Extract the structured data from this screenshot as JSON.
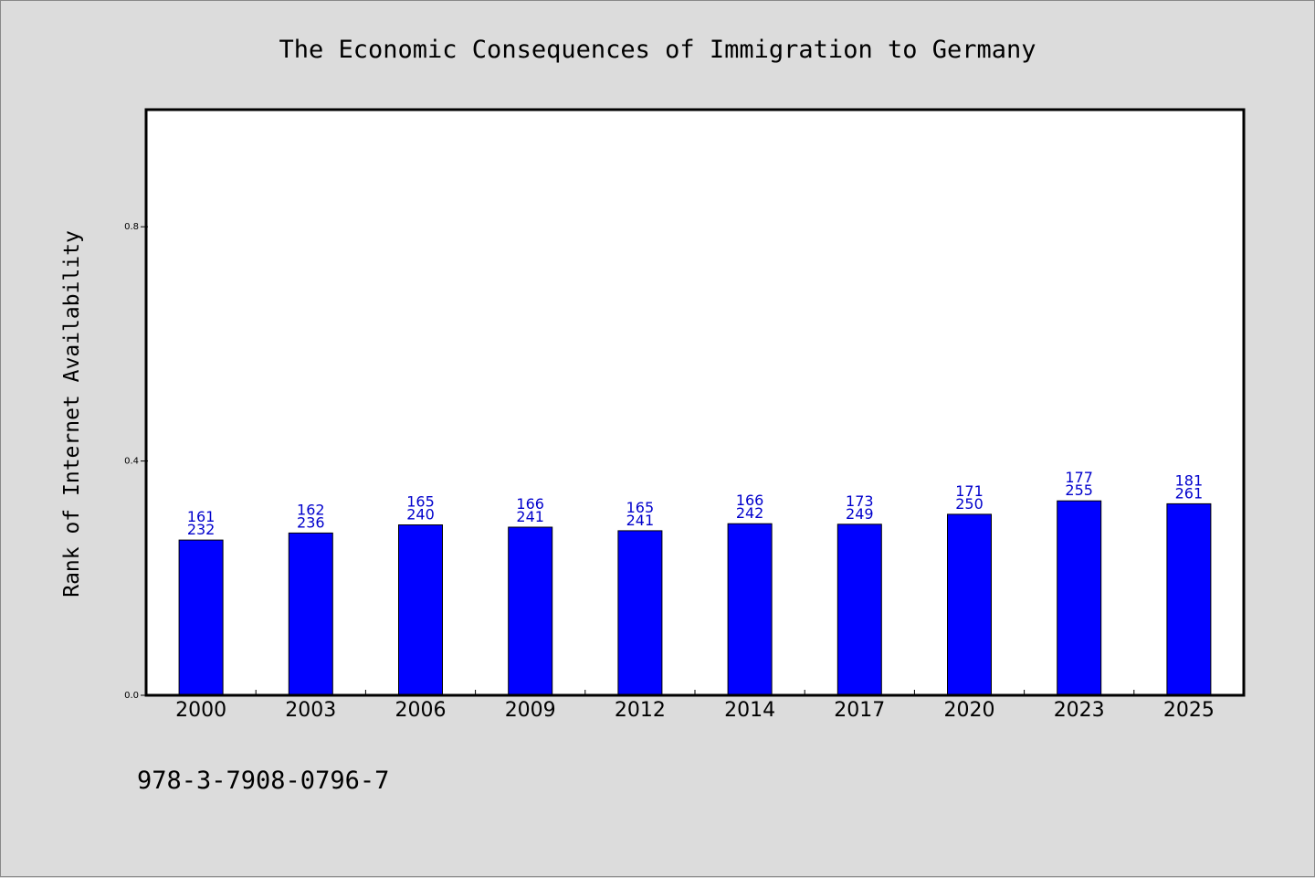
{
  "chart_data": {
    "type": "bar",
    "title": "The Economic Consequences of Immigration to Germany",
    "ylabel": "Rank of Internet Availability",
    "xlabel": "",
    "categories": [
      "2000",
      "2003",
      "2006",
      "2009",
      "2012",
      "2014",
      "2017",
      "2020",
      "2023",
      "2025"
    ],
    "values": [
      0.265,
      0.277,
      0.291,
      0.287,
      0.281,
      0.293,
      0.292,
      0.309,
      0.332,
      0.327
    ],
    "labels_top": [
      "161",
      "162",
      "165",
      "166",
      "165",
      "166",
      "173",
      "171",
      "177",
      "181"
    ],
    "labels_bottom": [
      "232",
      "236",
      "240",
      "241",
      "241",
      "242",
      "249",
      "250",
      "255",
      "261"
    ],
    "ylim": [
      0,
      1.0
    ],
    "yticks": [
      0.0,
      0.4,
      0.8
    ],
    "ytick_labels": [
      "0.0",
      "0.4",
      "0.8"
    ],
    "grid": false,
    "bar_color": "#0000ff",
    "label_color": "#0000cc"
  },
  "footer": {
    "isbn": "978-3-7908-0796-7"
  }
}
